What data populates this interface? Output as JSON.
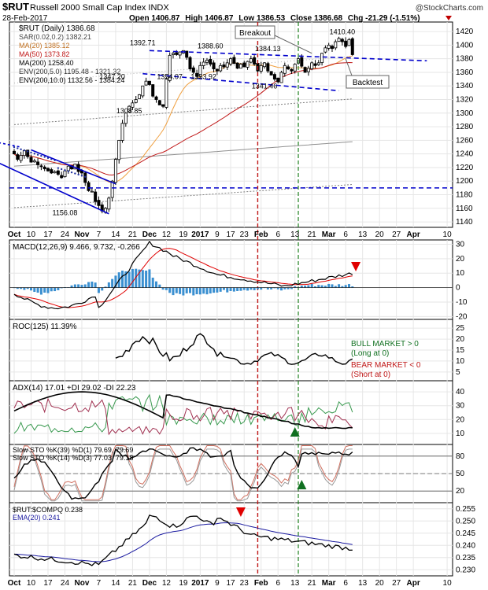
{
  "header": {
    "symbol": "$RUT",
    "name": "Russell 2000 Small Cap Index",
    "exchange": "INDX",
    "date": "28-Feb-2017",
    "open_label": "Open",
    "open": "1406.87",
    "high_label": "High",
    "high": "1406.87",
    "low_label": "Low",
    "low": "1386.53",
    "close_label": "Close",
    "close": "1386.68",
    "chg_label": "Chg",
    "chg": "-21.29 (-1.51%)",
    "brand": "@StockCharts.com"
  },
  "colors": {
    "ma20": "#f0a040",
    "ma50": "#c01818",
    "ma200": "#909090",
    "env": "#808080",
    "trend": "#0000cc",
    "macd_hist": "#3a8fd0",
    "signal": "#e00000",
    "pdi": "#3a9a50",
    "mdi": "#a03050",
    "arrow_red": "#e00000",
    "arrow_green": "#107020"
  },
  "chart_data": [
    {
      "type": "candlestick",
      "title": "$RUT (Daily) 1386.68",
      "legend": [
        "SAR(0.02,0.2) 1382.21",
        "MA(20) 1385.12",
        "MA(50) 1373.82",
        "MA(200) 1258.40",
        "ENV(200,5.0) 1195.48 - 1321.32",
        "ENV(200,10.0) 1132.56 - 1384.24"
      ],
      "ylim": [
        1132,
        1434
      ],
      "yticks": [
        1140,
        1160,
        1180,
        1200,
        1220,
        1240,
        1260,
        1280,
        1300,
        1320,
        1340,
        1360,
        1380,
        1400,
        1420
      ],
      "close": [
        1240,
        1232,
        1238,
        1245,
        1236,
        1228,
        1230,
        1224,
        1222,
        1218,
        1215,
        1212,
        1214,
        1210,
        1205,
        1215,
        1222,
        1218,
        1225,
        1214,
        1212,
        1198,
        1186,
        1185,
        1170,
        1164,
        1156,
        1160,
        1175,
        1200,
        1232,
        1260,
        1285,
        1300,
        1310,
        1315,
        1320,
        1327,
        1340,
        1347,
        1342,
        1325,
        1320,
        1312,
        1310,
        1350,
        1385,
        1388,
        1386,
        1390,
        1392,
        1382,
        1365,
        1360,
        1354,
        1370,
        1375,
        1378,
        1372,
        1365,
        1362,
        1370,
        1368,
        1374,
        1380,
        1373,
        1366,
        1372,
        1368,
        1376,
        1380,
        1372,
        1362,
        1370,
        1374,
        1362,
        1356,
        1350,
        1346,
        1360,
        1370,
        1365,
        1362,
        1372,
        1380,
        1369,
        1360,
        1366,
        1374,
        1370,
        1374,
        1388,
        1396,
        1400,
        1395,
        1405,
        1410,
        1405,
        1398,
        1408,
        1386
      ],
      "labels": {
        "1392.71": 1392.71,
        "1347.20": 1347.2,
        "1354.07": 1354.07,
        "1308.85": 1308.85,
        "1388.60": 1388.6,
        "1353.92": 1353.92,
        "1384.13": 1384.13,
        "1341.46": 1341.46,
        "1410.40": 1410.4,
        "1156.08": 1156.08
      },
      "annotations": [
        "Breakout",
        "Backtest"
      ],
      "support_level": 1190
    },
    {
      "type": "line",
      "title": "MACD(12,26,9) 9.466, 9.732, -0.266",
      "ylim": [
        -22,
        33
      ],
      "yticks": [
        -20,
        -10,
        0,
        10,
        20,
        30
      ]
    },
    {
      "type": "line",
      "title": "ROC(125) 11.39%",
      "ylim": [
        1,
        29
      ],
      "yticks": [
        5,
        10,
        15,
        20,
        25
      ],
      "notes": [
        "BULL MARKET > 0",
        "(Long at 0)",
        "BEAR MARKET < 0",
        "(Short at 0)"
      ]
    },
    {
      "type": "line",
      "title": "ADX(14) 17.01 +DI 29.02 -DI 22.23",
      "ylim": [
        2,
        48
      ],
      "yticks": [
        10,
        20,
        30,
        40
      ]
    },
    {
      "type": "line",
      "title": "Slow STO %K(39) %D(1) 79.69, 79.69",
      "title2": "Slow STO %K(14) %D(3) 77.03, 79.18",
      "ylim": [
        0,
        100
      ],
      "yticks": [
        20,
        50,
        80
      ]
    },
    {
      "type": "line",
      "title": "$RUT:$COMPQ 0.238",
      "title2": "EMA(20) 0.241",
      "ylim": [
        0.2275,
        0.2575
      ],
      "yticks": [
        0.23,
        0.235,
        0.24,
        0.245,
        0.25,
        0.255
      ]
    }
  ],
  "xaxis": {
    "ticks": [
      "Oct",
      "10",
      "17",
      "24",
      "Nov",
      "7",
      "14",
      "21",
      "Dec",
      "12",
      "19",
      "2017",
      "9",
      "17",
      "23",
      "Feb",
      "6",
      "13",
      "21",
      "Mar",
      "6",
      "13",
      "20",
      "27",
      "Apr",
      "10"
    ]
  }
}
